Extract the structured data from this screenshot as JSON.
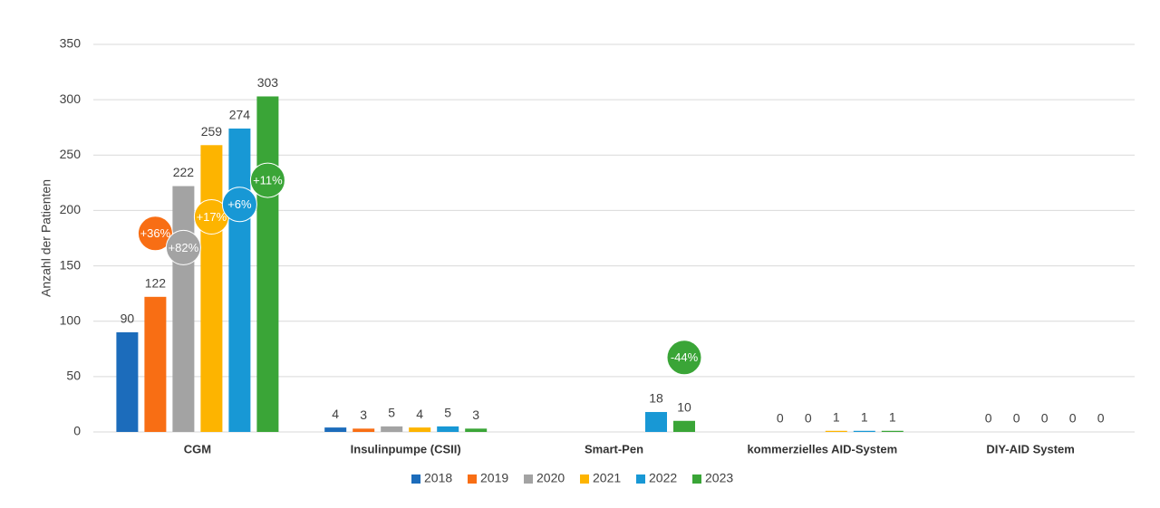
{
  "chart_data": {
    "type": "bar",
    "y_label": "Anzahl der Patienten",
    "categories": [
      "CGM",
      "Insulinpumpe (CSII)",
      "Smart-Pen",
      "kommerzielles AID-System",
      "DIY-AID System"
    ],
    "series": [
      {
        "name": "2018",
        "color": "#1c6cbb",
        "values": [
          90,
          4,
          null,
          null,
          null
        ],
        "changes": [
          null,
          null,
          null,
          null,
          null
        ]
      },
      {
        "name": "2019",
        "color": "#f86e14",
        "values": [
          122,
          3,
          null,
          0,
          0
        ],
        "changes": [
          "+36%",
          null,
          null,
          null,
          null
        ]
      },
      {
        "name": "2020",
        "color": "#a3a3a3",
        "values": [
          222,
          5,
          null,
          0,
          0
        ],
        "changes": [
          "+82%",
          null,
          null,
          null,
          null
        ]
      },
      {
        "name": "2021",
        "color": "#fdb400",
        "values": [
          259,
          4,
          null,
          1,
          0
        ],
        "changes": [
          "+17%",
          null,
          null,
          null,
          null
        ]
      },
      {
        "name": "2022",
        "color": "#1898d5",
        "values": [
          274,
          5,
          18,
          1,
          0
        ],
        "changes": [
          "+6%",
          null,
          null,
          null,
          null
        ]
      },
      {
        "name": "2023",
        "color": "#3aa537",
        "values": [
          303,
          3,
          10,
          1,
          0
        ],
        "changes": [
          "+11%",
          null,
          "-44%",
          null,
          null
        ]
      }
    ],
    "ylim": [
      0,
      350
    ],
    "yticks": [
      0,
      50,
      100,
      150,
      200,
      250,
      300,
      350
    ],
    "grid": true,
    "legend": "bottom"
  }
}
